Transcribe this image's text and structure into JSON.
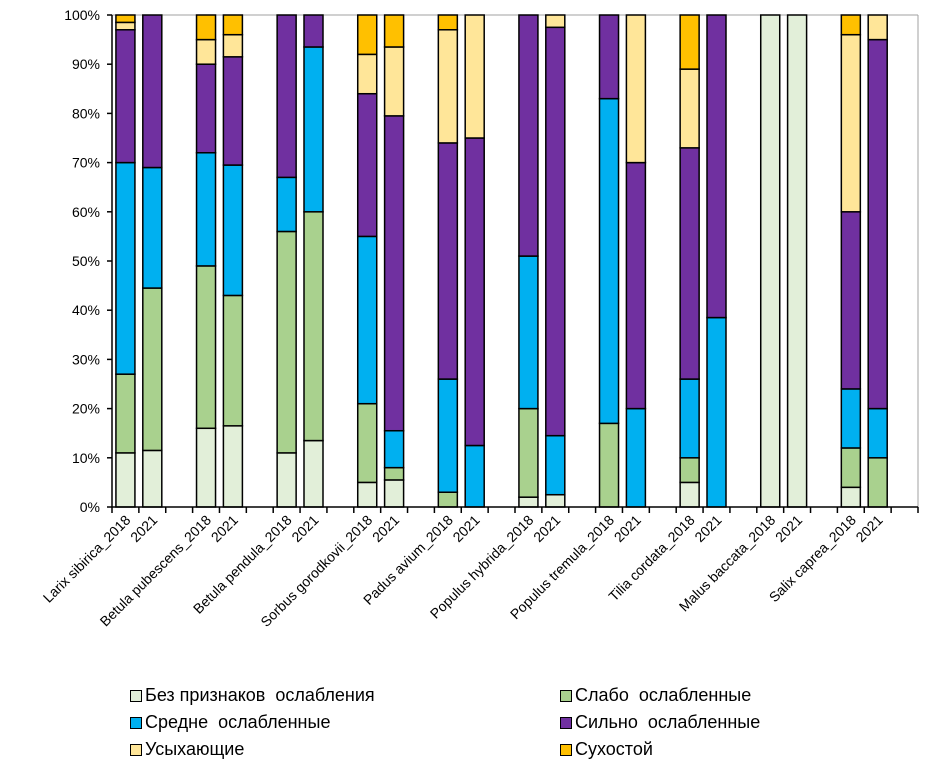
{
  "chart_data": {
    "type": "bar",
    "stacked": true,
    "normalized": true,
    "title": "",
    "xlabel": "",
    "ylabel": "",
    "ylim": [
      0,
      100
    ],
    "yticks": [
      "0%",
      "10%",
      "20%",
      "30%",
      "40%",
      "50%",
      "60%",
      "70%",
      "80%",
      "90%",
      "100%"
    ],
    "groups": [
      {
        "species": "Larix sibirica",
        "labels": [
          "Larix sibirica_2018",
          "2021"
        ]
      },
      {
        "species": "Betula pubescens",
        "labels": [
          "Betula pubescens_2018",
          "2021"
        ]
      },
      {
        "species": "Betula pendula",
        "labels": [
          "Betula pendula_2018",
          "2021"
        ]
      },
      {
        "species": "Sorbus gorodkovii",
        "labels": [
          "Sorbus gorodkovii_2018",
          "2021"
        ]
      },
      {
        "species": "Padus avium",
        "labels": [
          "Padus avium_2018",
          "2021"
        ]
      },
      {
        "species": "Populus hybrida",
        "labels": [
          "Populus hybrida_2018",
          "2021"
        ]
      },
      {
        "species": "Populus tremula",
        "labels": [
          "Populus tremula_2018",
          "2021"
        ]
      },
      {
        "species": "Tilia cordata",
        "labels": [
          "Tilia cordata_2018",
          "2021"
        ]
      },
      {
        "species": "Malus baccata",
        "labels": [
          "Malus baccata_2018",
          "2021"
        ]
      },
      {
        "species": "Salix caprea",
        "labels": [
          "Salix caprea_2018",
          "2021"
        ]
      }
    ],
    "categories": [
      "Larix sibirica_2018",
      "Larix sibirica_2021",
      "Betula pubescens_2018",
      "Betula pubescens_2021",
      "Betula pendula_2018",
      "Betula pendula_2021",
      "Sorbus gorodkovii_2018",
      "Sorbus gorodkovii_2021",
      "Padus avium_2018",
      "Padus avium_2021",
      "Populus hybrida_2018",
      "Populus hybrida_2021",
      "Populus tremula_2018",
      "Populus tremula_2021",
      "Tilia cordata_2018",
      "Tilia cordata_2021",
      "Malus baccata_2018",
      "Malus baccata_2021",
      "Salix caprea_2018",
      "Salix caprea_2021"
    ],
    "series": [
      {
        "name": "Без признаков ослабления",
        "color": "#e2efd9",
        "values": [
          11,
          11.5,
          16,
          16.5,
          11,
          13.5,
          5,
          5.5,
          0,
          0,
          2,
          2.5,
          0,
          0,
          5,
          0,
          100,
          100,
          4,
          0
        ]
      },
      {
        "name": "Слабо ослабленные",
        "color": "#a9d18e",
        "values": [
          16,
          33,
          33,
          26.5,
          45,
          46.5,
          16,
          2.5,
          3,
          0,
          18,
          0,
          17,
          0,
          5,
          0,
          0,
          0,
          8,
          10
        ]
      },
      {
        "name": "Средне ослабленные",
        "color": "#00b0f0",
        "values": [
          43,
          24.5,
          23,
          26.5,
          11,
          33.5,
          34,
          7.5,
          23,
          12.5,
          31,
          12,
          66,
          20,
          16,
          38.5,
          0,
          0,
          12,
          10
        ]
      },
      {
        "name": "Сильно ослабленные",
        "color": "#7030a0",
        "values": [
          27,
          31,
          18,
          22,
          33,
          6.5,
          29,
          64,
          48,
          62.5,
          49,
          83,
          17,
          50,
          47,
          61.5,
          0,
          0,
          36,
          75
        ]
      },
      {
        "name": "Усыхающие",
        "color": "#ffe699",
        "values": [
          1.5,
          0,
          5,
          4.5,
          0,
          0,
          8,
          14,
          23,
          25,
          0,
          2.5,
          0,
          30,
          16,
          0,
          0,
          0,
          36,
          5
        ]
      },
      {
        "name": "Сухостой",
        "color": "#ffc000",
        "values": [
          1.5,
          0,
          5,
          4,
          0,
          0,
          8,
          6.5,
          3,
          0,
          0,
          0,
          0,
          0,
          11,
          0,
          0,
          0,
          4,
          0
        ]
      }
    ],
    "legend_position": "bottom",
    "grid": false
  },
  "legend": {
    "items": [
      {
        "label": "Без признаков  ослабления",
        "color": "#e2efd9"
      },
      {
        "label": "Слабо  ослабленные",
        "color": "#a9d18e"
      },
      {
        "label": "Средне  ослабленные",
        "color": "#00b0f0"
      },
      {
        "label": "Сильно  ослабленные",
        "color": "#7030a0"
      },
      {
        "label": "Усыхающие",
        "color": "#ffe699"
      },
      {
        "label": "Сухостой",
        "color": "#ffc000"
      }
    ]
  }
}
